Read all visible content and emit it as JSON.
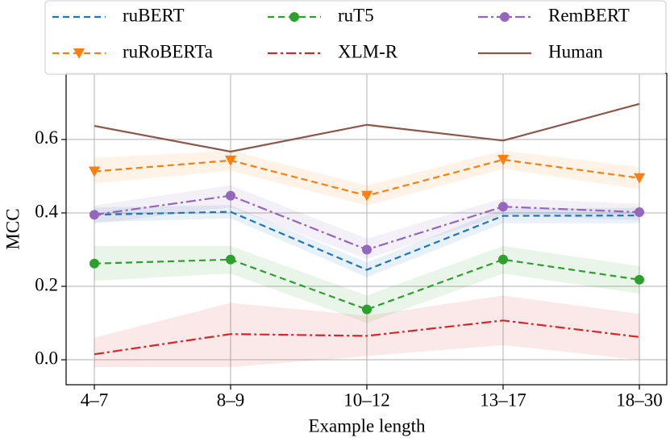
{
  "chart_data": {
    "type": "line",
    "xlabel": "Example length",
    "ylabel": "MCC",
    "categories": [
      "4–7",
      "8–9",
      "10–12",
      "13–17",
      "18–30"
    ],
    "ylim": [
      -0.068,
      0.78
    ],
    "yticks": [
      {
        "value": 0,
        "label": "0.0"
      },
      0.2,
      0.4,
      0.6
    ],
    "grid": true,
    "legend": "top",
    "series": [
      {
        "name": "ruBERT",
        "color": "#1f77b4",
        "style": "dashed",
        "marker": null,
        "values": [
          0.395,
          0.403,
          0.245,
          0.392,
          0.393
        ],
        "lower": [
          0.375,
          0.385,
          0.225,
          0.372,
          0.372
        ],
        "upper": [
          0.415,
          0.421,
          0.265,
          0.412,
          0.414
        ]
      },
      {
        "name": "ruRoBERTa",
        "color": "#ff7f0e",
        "style": "dashed",
        "marker": "v",
        "values": [
          0.513,
          0.543,
          0.447,
          0.545,
          0.495
        ],
        "lower": [
          0.48,
          0.515,
          0.42,
          0.52,
          0.465
        ],
        "upper": [
          0.55,
          0.57,
          0.475,
          0.57,
          0.525
        ]
      },
      {
        "name": "ruT5",
        "color": "#2ca02c",
        "style": "dashed",
        "marker": "o",
        "values": [
          0.262,
          0.273,
          0.137,
          0.273,
          0.218
        ],
        "lower": [
          0.215,
          0.235,
          0.1,
          0.235,
          0.18
        ],
        "upper": [
          0.31,
          0.31,
          0.175,
          0.31,
          0.255
        ]
      },
      {
        "name": "XLM-R",
        "color": "#d62728",
        "style": "dashdot",
        "marker": null,
        "values": [
          0.015,
          0.07,
          0.065,
          0.107,
          0.062
        ],
        "lower": [
          -0.02,
          -0.02,
          0.01,
          0.04,
          0.0
        ],
        "upper": [
          0.06,
          0.155,
          0.12,
          0.175,
          0.125
        ]
      },
      {
        "name": "RemBERT",
        "color": "#9467bd",
        "style": "dashdot",
        "marker": "o",
        "values": [
          0.395,
          0.447,
          0.3,
          0.417,
          0.402
        ],
        "lower": [
          0.37,
          0.415,
          0.275,
          0.395,
          0.38
        ],
        "upper": [
          0.42,
          0.475,
          0.33,
          0.44,
          0.425
        ]
      },
      {
        "name": "Human",
        "color": "#8c564b",
        "style": "solid",
        "marker": null,
        "values": [
          0.637,
          0.567,
          0.64,
          0.597,
          0.697
        ]
      }
    ]
  }
}
